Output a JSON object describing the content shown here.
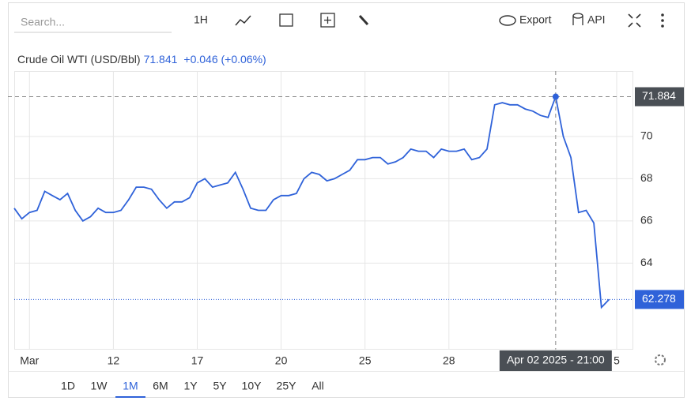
{
  "toolbar": {
    "search": "Search...",
    "interval": "1H",
    "export": "Export",
    "api": "API"
  },
  "ranges": {
    "items": [
      "1D",
      "1W",
      "1M",
      "6M",
      "1Y",
      "5Y",
      "10Y",
      "25Y",
      "All"
    ],
    "selected": 2
  },
  "chart_data": {
    "type": "line",
    "title": "Crude Oil WTI (USD/Bbl)",
    "price": "71.841",
    "change": "+0.046 (+0.06%)",
    "categories": [
      null,
      null,
      "Mar",
      null,
      null,
      null,
      null,
      null,
      null,
      null,
      null,
      null,
      null,
      "12",
      null,
      null,
      null,
      null,
      null,
      null,
      null,
      null,
      null,
      null,
      "17",
      null,
      null,
      null,
      null,
      null,
      null,
      null,
      null,
      null,
      null,
      "20",
      null,
      null,
      null,
      null,
      null,
      null,
      null,
      null,
      null,
      null,
      "25",
      null,
      null,
      null,
      null,
      null,
      null,
      null,
      null,
      null,
      null,
      "28",
      null,
      null,
      null,
      null,
      null,
      null,
      null,
      null,
      null,
      null,
      null,
      null,
      null,
      "Apr 02 2025 - 21:00",
      null,
      null,
      null,
      null,
      null,
      null,
      null,
      "5"
    ],
    "series": [
      {
        "name": "Crude Oil WTI",
        "color": "#2f62d9",
        "values": [
          66.6,
          66.1,
          66.4,
          66.5,
          67.4,
          67.2,
          67.0,
          67.3,
          66.5,
          66.0,
          66.2,
          66.6,
          66.4,
          66.4,
          66.5,
          67.0,
          67.6,
          67.6,
          67.5,
          67.0,
          66.6,
          66.9,
          66.9,
          67.1,
          67.8,
          68.0,
          67.6,
          67.7,
          67.8,
          68.3,
          67.5,
          66.6,
          66.5,
          66.5,
          67.0,
          67.2,
          67.2,
          67.3,
          68.0,
          68.3,
          68.2,
          67.9,
          68.0,
          68.2,
          68.4,
          68.9,
          68.9,
          69.0,
          69.0,
          68.7,
          68.8,
          69.0,
          69.4,
          69.3,
          69.3,
          69.0,
          69.4,
          69.3,
          69.3,
          69.4,
          68.9,
          69.0,
          69.4,
          71.5,
          71.6,
          71.5,
          71.5,
          71.3,
          71.2,
          71.0,
          70.9,
          71.884,
          70.0,
          69.0,
          66.4,
          66.5,
          65.9,
          61.9,
          62.278,
          null
        ]
      }
    ],
    "crosshair_index": 71,
    "last_index": 78,
    "ylim": [
      59.9,
      73.1
    ],
    "yticks": [
      64,
      66,
      68,
      70
    ],
    "grid": true
  }
}
